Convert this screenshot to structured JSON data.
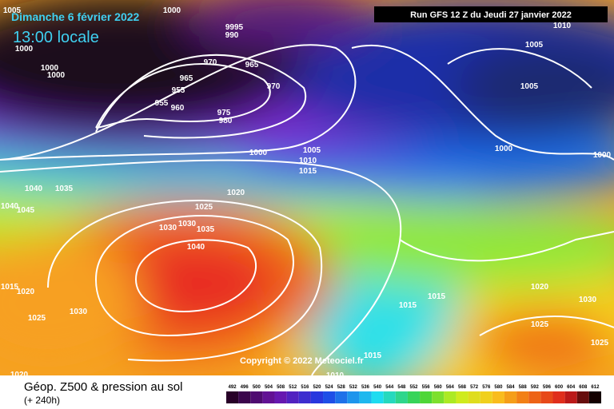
{
  "header": {
    "date": "Dimanche 6 février 2022",
    "time": "13:00 locale",
    "run": "Run GFS 12 Z du Jeudi 27 janvier 2022"
  },
  "copyright": "Copyright © 2022 Meteociel.fr",
  "footer": {
    "title": "Géop. Z500 & pression au sol",
    "lead": "(+ 240h)"
  },
  "isobar_labels": [
    1005,
    1000,
    9995,
    990,
    1000,
    1000,
    1000,
    970,
    965,
    965,
    955,
    970,
    955,
    960,
    975,
    980,
    1000,
    1005,
    1010,
    1015,
    1020,
    1040,
    1035,
    1040,
    1045,
    1025,
    1030,
    1030,
    1035,
    1040,
    1015,
    1020,
    1030,
    1025,
    1020,
    1015,
    1015,
    1015,
    1010,
    1020,
    1030,
    1025,
    1025,
    1005,
    1005,
    1000,
    1000,
    1010
  ],
  "colorbar": {
    "labels": [
      492,
      496,
      500,
      504,
      508,
      512,
      516,
      520,
      524,
      528,
      532,
      536,
      540,
      544,
      548,
      552,
      556,
      560,
      564,
      568,
      572,
      576,
      580,
      584,
      588,
      592,
      596,
      600,
      604,
      608,
      612
    ]
  }
}
